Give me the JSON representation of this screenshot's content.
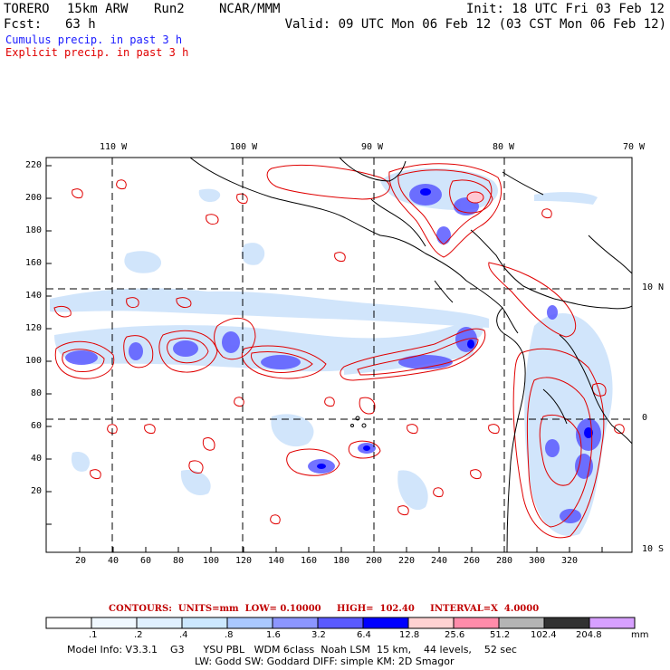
{
  "header": {
    "model": "TORERO",
    "resolution": "15km ARW",
    "run": "Run2",
    "org": "NCAR/MMM",
    "init": "Init: 18 UTC Fri 03 Feb 12",
    "fcst_label": "Fcst:",
    "fcst_value": "63 h",
    "valid": "Valid: 09 UTC Mon 06 Feb 12 (03 CST Mon 06 Feb 12)"
  },
  "legend_lines": [
    {
      "text": "Cumulus precip. in past 3 h",
      "color": "#1a1aff"
    },
    {
      "text": "Explicit precip. in past 3 h",
      "color": "#e00000"
    }
  ],
  "map": {
    "lon_labels": [
      "110 W",
      "100 W",
      "90 W",
      "80 W",
      "70 W"
    ],
    "lat_labels": [
      "10 N",
      "0",
      "10 S"
    ],
    "y_grid_labels": [
      "220",
      "200",
      "180",
      "160",
      "140",
      "120",
      "100",
      "80",
      "60",
      "40",
      "20"
    ],
    "x_grid_labels": [
      "20",
      "40",
      "60",
      "80",
      "100",
      "120",
      "140",
      "160",
      "180",
      "200",
      "220",
      "240",
      "260",
      "280",
      "300",
      "320"
    ]
  },
  "contours": {
    "text": "CONTOURS:  UNITS=mm  LOW= 0.10000     HIGH=  102.40     INTERVAL=X  4.0000"
  },
  "colorbar": {
    "labels": [
      ".1",
      ".2",
      ".4",
      ".8",
      "1.6",
      "3.2",
      "6.4",
      "12.8",
      "25.6",
      "51.2",
      "102.4",
      "204.8"
    ],
    "unit": "mm",
    "colors": [
      "#ffffff",
      "#f0f8ff",
      "#e0f0ff",
      "#cce8ff",
      "#aac8ff",
      "#8c96ff",
      "#5a5aff",
      "#0000ff",
      "#ffd2d2",
      "#ff8caa",
      "#b4b4b4",
      "#323232",
      "#d7a0ff"
    ]
  },
  "footer": {
    "line1": "Model Info: V3.3.1    G3      YSU PBL   WDM 6class  Noah LSM  15 km,    44 levels,    52 sec",
    "line2": "LW: Godd SW: Goddard DIFF: simple KM: 2D Smagor"
  }
}
